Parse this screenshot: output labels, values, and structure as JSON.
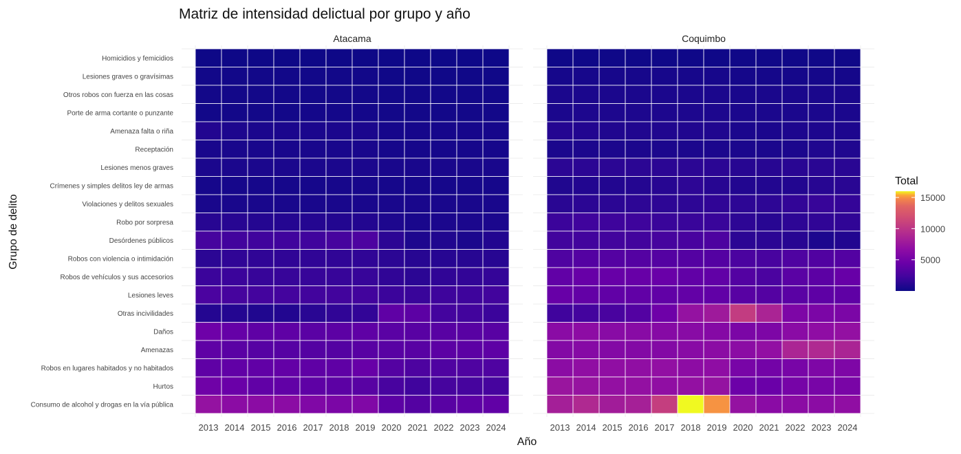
{
  "chart_data": {
    "type": "heatmap",
    "title": "Matriz de intensidad delictual por grupo y año",
    "xlabel": "Año",
    "ylabel": "Grupo de delito",
    "legend_title": "Total",
    "legend_ticks": [
      5000,
      10000,
      15000
    ],
    "legend_tick_labels": [
      "5000",
      "10000",
      "15000"
    ],
    "color_range": [
      0,
      16000
    ],
    "colormap": "plasma",
    "years": [
      "2013",
      "2014",
      "2015",
      "2016",
      "2017",
      "2018",
      "2019",
      "2020",
      "2021",
      "2022",
      "2023",
      "2024"
    ],
    "groups": [
      "Homicidios y femicidios",
      "Lesiones graves o gravísimas",
      "Otros robos con fuerza en las cosas",
      "Porte de arma cortante o punzante",
      "Amenaza falta o riña",
      "Receptación",
      "Lesiones menos graves",
      "Crímenes y simples delitos ley de armas",
      "Violaciones y delitos sexuales",
      "Robo por sorpresa",
      "Desórdenes públicos",
      "Robos con violencia o intimidación",
      "Robos de vehículos y sus accesorios",
      "Lesiones leves",
      "Otras incivilidades",
      "Daños",
      "Amenazas",
      "Robos en lugares habitados y no habitados",
      "Hurtos",
      "Consumo de alcohol y drogas en la vía pública"
    ],
    "panels": [
      {
        "name": "Atacama",
        "values": [
          [
            50,
            50,
            50,
            50,
            50,
            50,
            50,
            60,
            60,
            60,
            60,
            60
          ],
          [
            200,
            200,
            200,
            200,
            200,
            200,
            200,
            150,
            150,
            150,
            150,
            150
          ],
          [
            250,
            250,
            250,
            250,
            250,
            250,
            250,
            200,
            200,
            200,
            200,
            200
          ],
          [
            200,
            250,
            250,
            250,
            300,
            300,
            300,
            250,
            250,
            250,
            250,
            250
          ],
          [
            900,
            700,
            600,
            600,
            600,
            600,
            600,
            400,
            400,
            400,
            400,
            400
          ],
          [
            500,
            500,
            500,
            500,
            500,
            500,
            500,
            400,
            400,
            400,
            400,
            400
          ],
          [
            600,
            600,
            600,
            600,
            600,
            600,
            600,
            500,
            500,
            500,
            500,
            500
          ],
          [
            400,
            400,
            400,
            400,
            400,
            450,
            450,
            400,
            400,
            400,
            400,
            400
          ],
          [
            500,
            500,
            500,
            500,
            500,
            500,
            500,
            500,
            500,
            500,
            500,
            500
          ],
          [
            1100,
            1100,
            1000,
            1000,
            1000,
            900,
            900,
            700,
            500,
            600,
            600,
            600
          ],
          [
            2500,
            2300,
            2200,
            2200,
            2200,
            2500,
            2900,
            1300,
            700,
            800,
            600,
            900
          ],
          [
            1300,
            1500,
            1500,
            1500,
            1500,
            1500,
            1500,
            1300,
            1100,
            1100,
            1100,
            1100
          ],
          [
            2000,
            2000,
            1800,
            1800,
            1800,
            1800,
            1800,
            1500,
            1300,
            1500,
            1600,
            1700
          ],
          [
            2800,
            2500,
            2400,
            2400,
            2300,
            2300,
            2300,
            2000,
            1900,
            2100,
            2100,
            2300
          ],
          [
            1000,
            1000,
            800,
            900,
            1200,
            1500,
            1600,
            3900,
            3700,
            2400,
            2300,
            2000
          ],
          [
            4700,
            4200,
            3900,
            3900,
            3600,
            3700,
            3900,
            3600,
            3500,
            3500,
            3500,
            3500
          ],
          [
            3900,
            3600,
            3400,
            3400,
            3300,
            3300,
            3500,
            3500,
            3500,
            3700,
            3700,
            3800
          ],
          [
            3900,
            4000,
            4000,
            4100,
            3900,
            3900,
            4300,
            3300,
            2900,
            3000,
            3000,
            3000
          ],
          [
            4800,
            4500,
            4000,
            4000,
            3800,
            3700,
            3500,
            2600,
            2200,
            2500,
            2500,
            2500
          ],
          [
            7100,
            6500,
            6500,
            6500,
            5800,
            5500,
            5800,
            3700,
            3300,
            3500,
            3800,
            4000
          ]
        ]
      },
      {
        "name": "Coquimbo",
        "values": [
          [
            100,
            100,
            100,
            100,
            100,
            100,
            100,
            120,
            120,
            120,
            120,
            120
          ],
          [
            400,
            450,
            450,
            450,
            450,
            450,
            450,
            350,
            350,
            350,
            350,
            350
          ],
          [
            600,
            600,
            600,
            600,
            600,
            600,
            600,
            500,
            550,
            550,
            550,
            550
          ],
          [
            600,
            700,
            700,
            700,
            700,
            700,
            700,
            600,
            600,
            600,
            600,
            600
          ],
          [
            1000,
            900,
            800,
            800,
            800,
            800,
            800,
            600,
            600,
            700,
            700,
            700
          ],
          [
            600,
            650,
            650,
            650,
            650,
            650,
            650,
            600,
            600,
            650,
            800,
            800
          ],
          [
            1300,
            1300,
            1300,
            1300,
            1300,
            1300,
            1300,
            1100,
            1100,
            1200,
            1200,
            1200
          ],
          [
            800,
            900,
            900,
            1000,
            1100,
            1400,
            1100,
            900,
            900,
            900,
            1100,
            1200
          ],
          [
            1200,
            1300,
            1300,
            1400,
            1400,
            1400,
            1500,
            1400,
            1400,
            1600,
            1800,
            1700
          ],
          [
            2000,
            2200,
            2100,
            2100,
            1900,
            1900,
            1900,
            1400,
            1100,
            1400,
            1500,
            1500
          ],
          [
            2300,
            2300,
            2300,
            2300,
            2500,
            2600,
            2900,
            1300,
            1300,
            1100,
            700,
            900
          ],
          [
            3000,
            3300,
            3300,
            3300,
            3300,
            3300,
            3300,
            2800,
            2600,
            3000,
            3100,
            3200
          ],
          [
            4000,
            4300,
            4300,
            4300,
            4400,
            4000,
            4000,
            3200,
            2800,
            3600,
            3700,
            4300
          ],
          [
            4300,
            4100,
            4000,
            4000,
            4000,
            4100,
            4000,
            3500,
            3300,
            3600,
            3800,
            3900
          ],
          [
            2200,
            2400,
            2700,
            3200,
            4700,
            7100,
            7800,
            10500,
            8600,
            5600,
            5500,
            5500
          ],
          [
            6400,
            6600,
            6300,
            6300,
            6200,
            6300,
            6100,
            5500,
            5600,
            6400,
            6700,
            7000
          ],
          [
            6000,
            6200,
            6000,
            6000,
            6000,
            6300,
            6500,
            6500,
            6900,
            8700,
            9000,
            8600
          ],
          [
            6500,
            6800,
            6800,
            6800,
            6900,
            6600,
            6700,
            5300,
            5000,
            5300,
            5700,
            5700
          ],
          [
            7400,
            7200,
            7000,
            7000,
            6800,
            7000,
            7100,
            4600,
            4500,
            5200,
            5300,
            5400
          ],
          [
            8200,
            9000,
            8000,
            8300,
            10700,
            16000,
            15000,
            7100,
            6400,
            6500,
            6500,
            6800
          ]
        ]
      }
    ]
  }
}
